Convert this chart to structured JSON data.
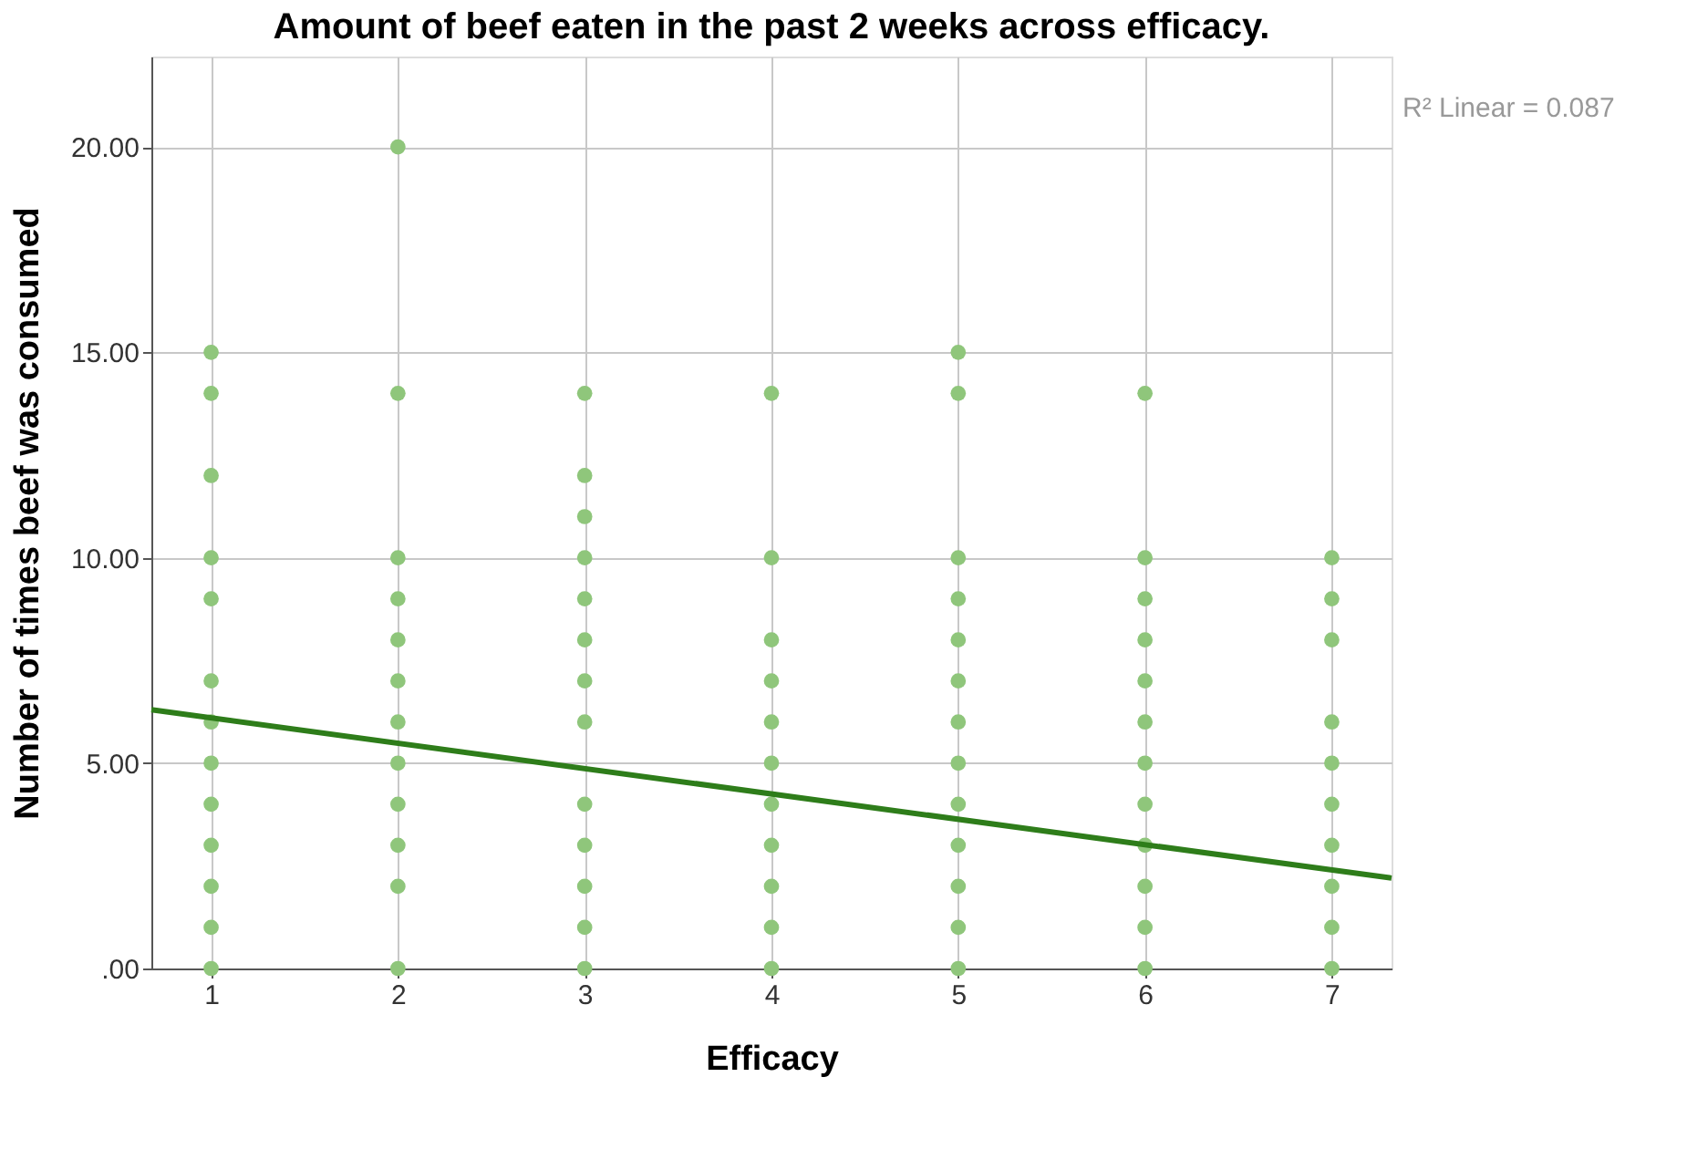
{
  "chart_data": {
    "type": "scatter",
    "title": "Amount of beef eaten in the past 2 weeks across efficacy.",
    "xlabel": "Efficacy",
    "ylabel": "Number of times beef was consumed",
    "xlim": [
      0.68,
      7.32
    ],
    "ylim": [
      0,
      22.2
    ],
    "xticks": [
      1,
      2,
      3,
      4,
      5,
      6,
      7
    ],
    "yticks": [
      {
        "value": 0,
        "label": ".00"
      },
      {
        "value": 5,
        "label": "5.00"
      },
      {
        "value": 10,
        "label": "10.00"
      },
      {
        "value": 15,
        "label": "15.00"
      },
      {
        "value": 20,
        "label": "20.00"
      }
    ],
    "grid": true,
    "marker": "circle",
    "annotations": [
      "R² Linear = 0.087"
    ],
    "series": [
      {
        "color": "#8fc67b",
        "x": [
          1,
          1,
          1,
          1,
          1,
          1,
          1,
          1,
          1,
          1,
          1,
          1,
          1,
          2,
          2,
          2,
          2,
          2,
          2,
          2,
          2,
          2,
          2,
          2,
          2,
          3,
          3,
          3,
          3,
          3,
          3,
          3,
          3,
          3,
          3,
          3,
          3,
          3,
          4,
          4,
          4,
          4,
          4,
          4,
          4,
          4,
          4,
          4,
          4,
          5,
          5,
          5,
          5,
          5,
          5,
          5,
          5,
          5,
          5,
          5,
          5,
          5,
          6,
          6,
          6,
          6,
          6,
          6,
          6,
          6,
          6,
          6,
          6,
          6,
          7,
          7,
          7,
          7,
          7,
          7,
          7,
          7,
          7,
          7
        ],
        "values": [
          15,
          14,
          12,
          10,
          9,
          7,
          6,
          5,
          4,
          3,
          2,
          1,
          0,
          20,
          14,
          10,
          9,
          8,
          7,
          6,
          5,
          4,
          3,
          2,
          0,
          14,
          12,
          11,
          10,
          9,
          8,
          7,
          6,
          4,
          3,
          2,
          1,
          0,
          14,
          10,
          8,
          7,
          6,
          5,
          4,
          3,
          2,
          1,
          0,
          15,
          14,
          10,
          9,
          8,
          7,
          6,
          5,
          4,
          3,
          2,
          1,
          0,
          14,
          10,
          9,
          8,
          7,
          6,
          5,
          4,
          3,
          2,
          1,
          0,
          10,
          9,
          8,
          6,
          5,
          4,
          3,
          2,
          1,
          0
        ]
      },
      {
        "type": "line",
        "color": "#2e7d1a",
        "line_style": "solid",
        "marker": "none",
        "x": [
          0.68,
          7.32
        ],
        "values": [
          6.3,
          2.2
        ]
      }
    ]
  }
}
